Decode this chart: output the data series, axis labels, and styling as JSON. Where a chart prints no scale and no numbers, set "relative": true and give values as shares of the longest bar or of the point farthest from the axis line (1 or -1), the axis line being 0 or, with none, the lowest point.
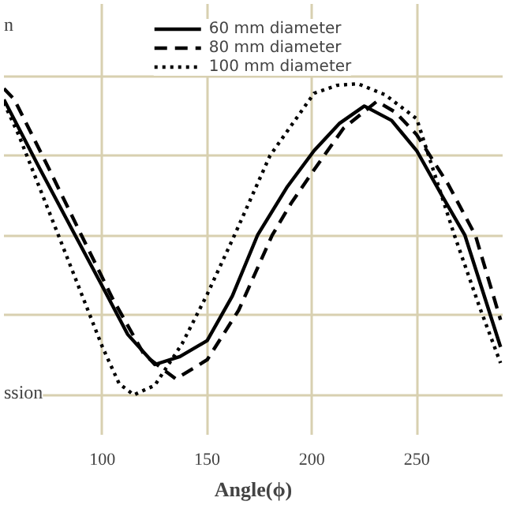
{
  "chart_data": {
    "type": "line",
    "relative": true,
    "xlabel": "Angle(ϕ)",
    "xlim": [
      53,
      291
    ],
    "xticks": [
      100,
      150,
      200,
      250
    ],
    "grid": true,
    "legend": "top",
    "annotations": [
      "n",
      "ssion"
    ],
    "series": [
      {
        "name": "60 mm diameter",
        "color": "#000000",
        "line_style": "solid",
        "x": [
          53,
          70,
          87,
          100,
          112,
          125,
          137,
          150,
          162,
          174,
          188,
          201,
          213,
          225,
          238,
          250,
          262,
          273,
          290
        ],
        "values": [
          0.85,
          0.42,
          0,
          -0.32,
          -0.62,
          -0.81,
          -0.76,
          -0.66,
          -0.38,
          0,
          0.3,
          0.53,
          0.7,
          0.81,
          0.72,
          0.53,
          0.25,
          0,
          -0.7
        ]
      },
      {
        "name": "80 mm diameter",
        "color": "#000000",
        "line_style": "dashed",
        "x": [
          53,
          58,
          74,
          90,
          105,
          120,
          135,
          150,
          165,
          181,
          190,
          201,
          215,
          231,
          240,
          250,
          265,
          278,
          290
        ],
        "values": [
          0.92,
          0.85,
          0.43,
          0,
          -0.4,
          -0.75,
          -0.9,
          -0.78,
          -0.47,
          0,
          0.2,
          0.41,
          0.67,
          0.84,
          0.77,
          0.63,
          0.32,
          0,
          -0.53
        ]
      },
      {
        "name": "100 mm diameter",
        "color": "#000000",
        "line_style": "dotted",
        "x": [
          53,
          60,
          79,
          100,
          108,
          115,
          125,
          138,
          150,
          163,
          180,
          201,
          212,
          222,
          235,
          250,
          268,
          280,
          290
        ],
        "values": [
          0.83,
          0.63,
          0,
          -0.7,
          -0.93,
          -1,
          -0.94,
          -0.68,
          -0.37,
          0,
          0.5,
          0.89,
          0.94,
          0.95,
          0.88,
          0.73,
          0,
          -0.45,
          -0.8
        ]
      }
    ]
  }
}
